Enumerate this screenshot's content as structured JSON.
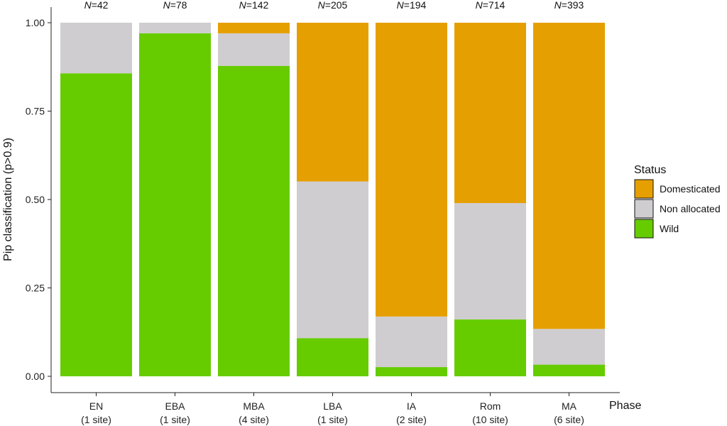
{
  "chart_data": {
    "type": "bar",
    "stacked": true,
    "normalized": true,
    "title": "",
    "xlabel": "Phase",
    "ylabel": "Pip classification (p>0.9)",
    "ylim": [
      0,
      1
    ],
    "yticks": [
      "0.00",
      "0.25",
      "0.50",
      "0.75",
      "1.00"
    ],
    "categories": [
      "EN",
      "EBA",
      "MBA",
      "LBA",
      "IA",
      "Rom",
      "MA"
    ],
    "subcategories": [
      "(1 site)",
      "(1 site)",
      "(4 site)",
      "(1 site)",
      "(2 site)",
      "(10 site)",
      "(6 site)"
    ],
    "n_prefix": "N",
    "n_values": [
      "=42",
      "=78",
      "=142",
      "=205",
      "=194",
      "=714",
      "=393"
    ],
    "legend": {
      "title": "Status",
      "position": "right"
    },
    "grid": false,
    "series": [
      {
        "name": "Wild",
        "color": "#66cc00",
        "values": [
          0.857,
          0.97,
          0.878,
          0.108,
          0.026,
          0.161,
          0.033
        ]
      },
      {
        "name": "Non allocated",
        "color": "#cfcdd0",
        "values": [
          0.143,
          0.03,
          0.092,
          0.443,
          0.143,
          0.329,
          0.101
        ]
      },
      {
        "name": "Domesticated",
        "color": "#e69f00",
        "values": [
          0.0,
          0.0,
          0.03,
          0.449,
          0.831,
          0.51,
          0.866
        ]
      }
    ],
    "legend_order": [
      "Domesticated",
      "Non allocated",
      "Wild"
    ]
  }
}
